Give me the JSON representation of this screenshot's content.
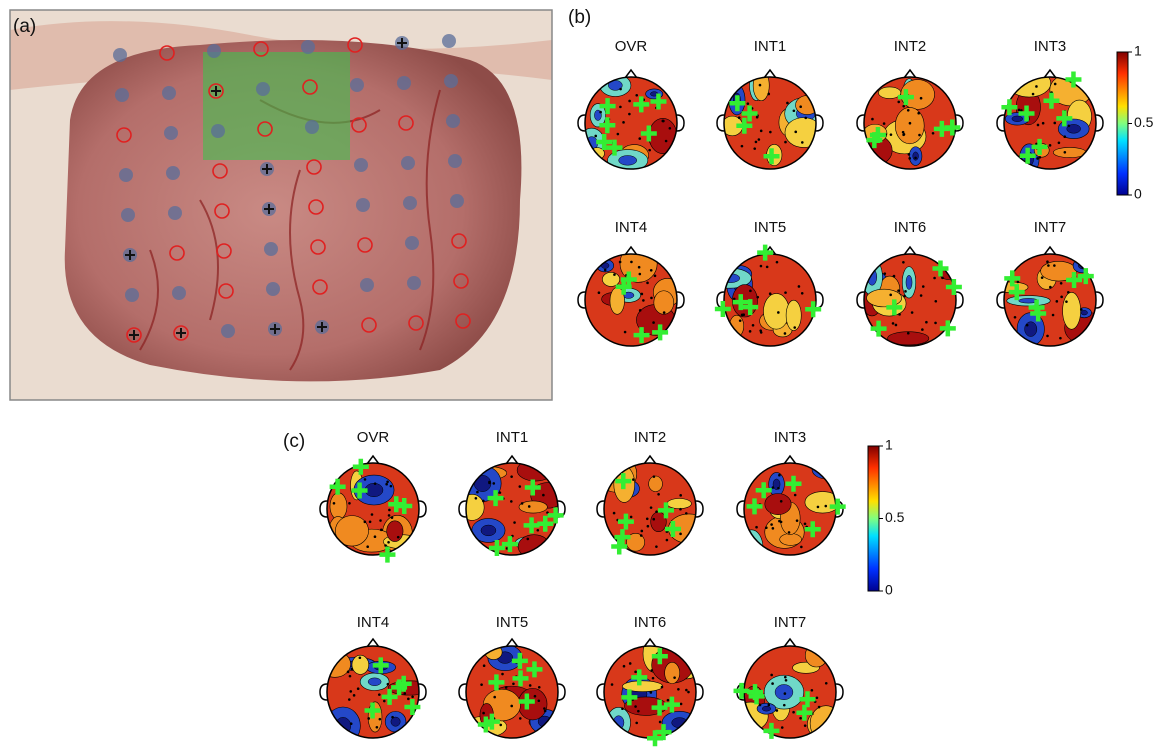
{
  "panel_a": {
    "label": "(a)"
  },
  "panel_b": {
    "label": "(b)",
    "maps": [
      "OVR",
      "INT1",
      "INT2",
      "INT3",
      "INT4",
      "INT5",
      "INT6",
      "INT7"
    ],
    "colorbar_ticks": [
      "1",
      "0.5",
      "0"
    ]
  },
  "panel_c": {
    "label": "(c)",
    "maps": [
      "OVR",
      "INT1",
      "INT2",
      "INT3",
      "INT4",
      "INT5",
      "INT6",
      "INT7"
    ],
    "colorbar_ticks": [
      "1",
      "0.5",
      "0"
    ]
  }
}
